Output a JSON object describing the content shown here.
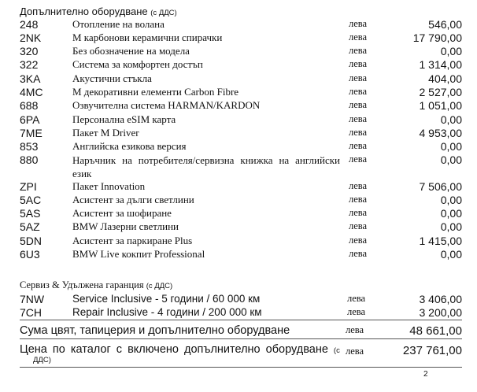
{
  "equipment": {
    "title": "Допълнително оборудване",
    "title_note": "(с ДДС)",
    "items": [
      {
        "code": "248",
        "desc": "Отопление на волана",
        "cur": "лева",
        "amount": "546,00"
      },
      {
        "code": "2NK",
        "desc": "М карбонови керамични спирачки",
        "cur": "лева",
        "amount": "17 790,00"
      },
      {
        "code": "320",
        "desc": "Без обозначение на модела",
        "cur": "лева",
        "amount": "0,00"
      },
      {
        "code": "322",
        "desc": "Система за комфортен достъп",
        "cur": "лева",
        "amount": "1 314,00"
      },
      {
        "code": "3KA",
        "desc": "Акустични стъкла",
        "cur": "лева",
        "amount": "404,00"
      },
      {
        "code": "4MC",
        "desc": "М декоративни елементи Carbon Fibre",
        "cur": "лева",
        "amount": "2 527,00"
      },
      {
        "code": "688",
        "desc": "Озвучителна система HARMAN/KARDON",
        "cur": "лева",
        "amount": "1 051,00"
      },
      {
        "code": "6PA",
        "desc": "Персонална eSIM карта",
        "cur": "лева",
        "amount": "0,00"
      },
      {
        "code": "7ME",
        "desc": "Пакет M Driver",
        "cur": "лева",
        "amount": "4 953,00"
      },
      {
        "code": "853",
        "desc": "Английска езикова версия",
        "cur": "лева",
        "amount": "0,00"
      },
      {
        "code": "880",
        "desc": "Наръчник на потребителя/сервизна книжка на английски език",
        "cur": "лева",
        "amount": "0,00"
      },
      {
        "code": "ZPI",
        "desc": "Пакет Innovation",
        "cur": "лева",
        "amount": "7 506,00"
      },
      {
        "code": "5AC",
        "desc": "Асистент за дълги светлини",
        "cur": "лева",
        "amount": "0,00"
      },
      {
        "code": "5AS",
        "desc": "Асистент за шофиране",
        "cur": "лева",
        "amount": "0,00"
      },
      {
        "code": "5AZ",
        "desc": "BMW Лазерни светлини",
        "cur": "лева",
        "amount": "0,00"
      },
      {
        "code": "5DN",
        "desc": "Асистент за паркиране Plus",
        "cur": "лева",
        "amount": "1 415,00"
      },
      {
        "code": "6U3",
        "desc": "BMW Live кокпит Professional",
        "cur": "лева",
        "amount": "0,00"
      }
    ]
  },
  "service": {
    "title": "Сервиз & Удължена гаранция",
    "title_note": "(с ДДС)",
    "items": [
      {
        "code": "7NW",
        "desc": "Service Inclusive - 5 години / 60 000 км",
        "cur": "лева",
        "amount": "3 406,00"
      },
      {
        "code": "7CH",
        "desc": "Repair Inclusive - 4 години / 200 000 км",
        "cur": "лева",
        "amount": "3 200,00"
      }
    ]
  },
  "totals": {
    "sum_label": "Сума цвят, тапицерия и допълнително оборудване",
    "sum_cur": "лева",
    "sum_amount": "48 661,00",
    "catalog_label": "Цена по каталог с включено допълнително оборудване",
    "catalog_note_a": "(с",
    "catalog_note_b": "ДДС)",
    "catalog_cur": "лева",
    "catalog_amount": "237 761,00"
  },
  "page_number": "2"
}
